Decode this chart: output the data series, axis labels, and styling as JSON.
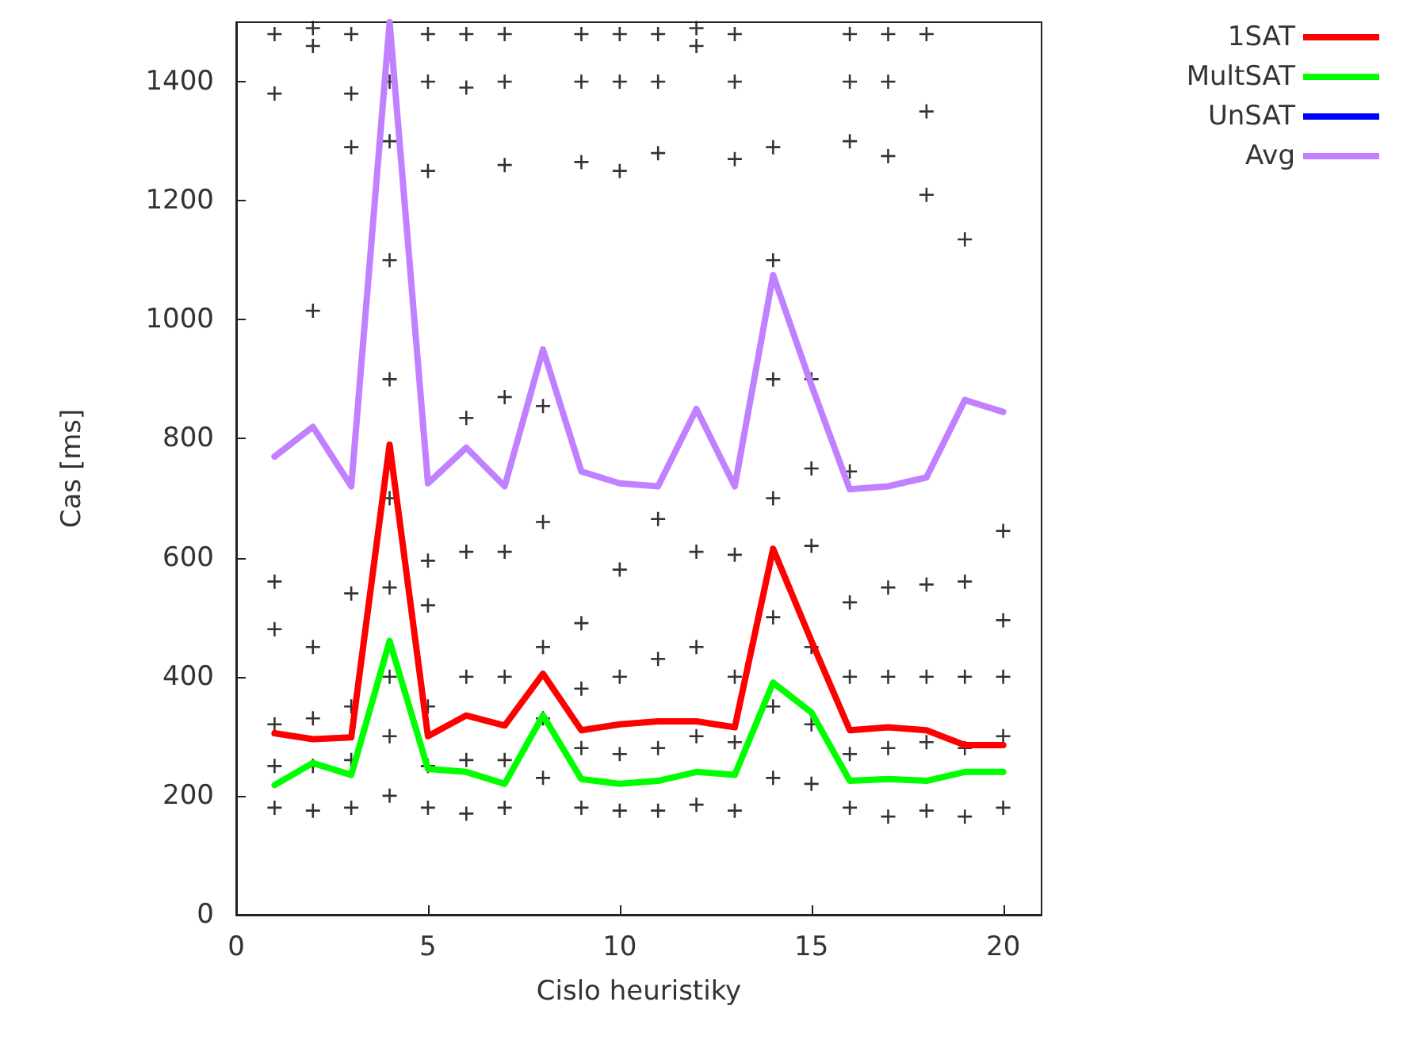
{
  "chart_data": {
    "type": "line",
    "xlabel": "Cislo heuristiky",
    "ylabel": "Cas [ms]",
    "x": [
      1,
      2,
      3,
      4,
      5,
      6,
      7,
      8,
      9,
      10,
      11,
      12,
      13,
      14,
      15,
      16,
      17,
      18,
      19,
      20
    ],
    "xlim": [
      0,
      21
    ],
    "xticks": [
      0,
      5,
      10,
      15,
      20
    ],
    "ylim": [
      0,
      1500
    ],
    "yticks": [
      0,
      200,
      400,
      600,
      800,
      1000,
      1200,
      1400
    ],
    "grid": false,
    "legend": "top right",
    "series": [
      {
        "type": "scatter",
        "color": "#000000",
        "marker": "cross",
        "x": [
          1,
          1,
          1,
          1,
          1,
          1,
          1,
          2,
          2,
          2,
          2,
          2,
          2,
          2,
          3,
          3,
          3,
          3,
          3,
          3,
          3,
          4,
          4,
          4,
          4,
          4,
          4,
          4,
          4,
          4,
          5,
          5,
          5,
          5,
          5,
          5,
          5,
          5,
          6,
          6,
          6,
          6,
          6,
          6,
          6,
          7,
          7,
          7,
          7,
          7,
          7,
          7,
          7,
          8,
          8,
          8,
          8,
          8,
          9,
          9,
          9,
          9,
          9,
          9,
          9,
          10,
          10,
          10,
          10,
          10,
          10,
          10,
          11,
          11,
          11,
          11,
          11,
          11,
          11,
          12,
          12,
          12,
          12,
          12,
          12,
          13,
          13,
          13,
          13,
          13,
          13,
          13,
          14,
          14,
          14,
          14,
          14,
          14,
          14,
          15,
          15,
          15,
          15,
          15,
          15,
          16,
          16,
          16,
          16,
          16,
          16,
          16,
          16,
          17,
          17,
          17,
          17,
          17,
          17,
          17,
          18,
          18,
          18,
          18,
          18,
          18,
          18,
          19,
          19,
          19,
          19,
          19,
          20,
          20,
          20,
          20,
          20
        ],
        "values": [
          180,
          250,
          320,
          480,
          560,
          1380,
          1480,
          175,
          250,
          330,
          450,
          1015,
          1460,
          1490,
          180,
          260,
          350,
          540,
          1290,
          1380,
          1480,
          200,
          300,
          400,
          550,
          700,
          900,
          1100,
          1300,
          1400,
          180,
          250,
          350,
          520,
          595,
          1250,
          1400,
          1480,
          170,
          260,
          400,
          610,
          835,
          1390,
          1480,
          180,
          260,
          400,
          610,
          870,
          1260,
          1400,
          1480,
          230,
          330,
          450,
          660,
          855,
          180,
          280,
          380,
          490,
          1265,
          1400,
          1480,
          175,
          270,
          400,
          580,
          1250,
          1400,
          1480,
          175,
          280,
          430,
          665,
          1280,
          1400,
          1480,
          185,
          300,
          450,
          610,
          1460,
          1490,
          175,
          290,
          400,
          605,
          1270,
          1400,
          1480,
          230,
          350,
          500,
          700,
          900,
          1100,
          1290,
          220,
          320,
          450,
          620,
          750,
          900,
          180,
          270,
          400,
          525,
          745,
          1300,
          1400,
          1480,
          165,
          280,
          400,
          550,
          1275,
          1400,
          1480,
          175,
          290,
          400,
          555,
          1210,
          1350,
          1480,
          165,
          280,
          400,
          560,
          1135,
          180,
          300,
          400,
          495,
          645
        ]
      },
      {
        "name": "1SAT",
        "color": "#ff0000",
        "marker": "none",
        "values": [
          305,
          295,
          298,
          790,
          300,
          335,
          318,
          405,
          310,
          320,
          325,
          325,
          315,
          615,
          460,
          310,
          315,
          310,
          285,
          285
        ]
      },
      {
        "name": "MultSAT",
        "color": "#00ff00",
        "marker": "none",
        "values": [
          218,
          255,
          235,
          460,
          245,
          240,
          220,
          335,
          228,
          220,
          225,
          240,
          235,
          390,
          340,
          225,
          228,
          225,
          240,
          240
        ]
      },
      {
        "name": "UnSAT",
        "color": "#0000ff",
        "marker": "none",
        "values": [
          null,
          null,
          null,
          null,
          null,
          null,
          null,
          null,
          null,
          null,
          null,
          null,
          null,
          null,
          null,
          null,
          null,
          null,
          null,
          null
        ]
      },
      {
        "name": "Avg",
        "color": "#c080ff",
        "marker": "none",
        "values": [
          770,
          820,
          720,
          1500,
          725,
          785,
          720,
          950,
          745,
          725,
          720,
          850,
          720,
          1075,
          890,
          715,
          720,
          735,
          865,
          845
        ]
      }
    ]
  }
}
